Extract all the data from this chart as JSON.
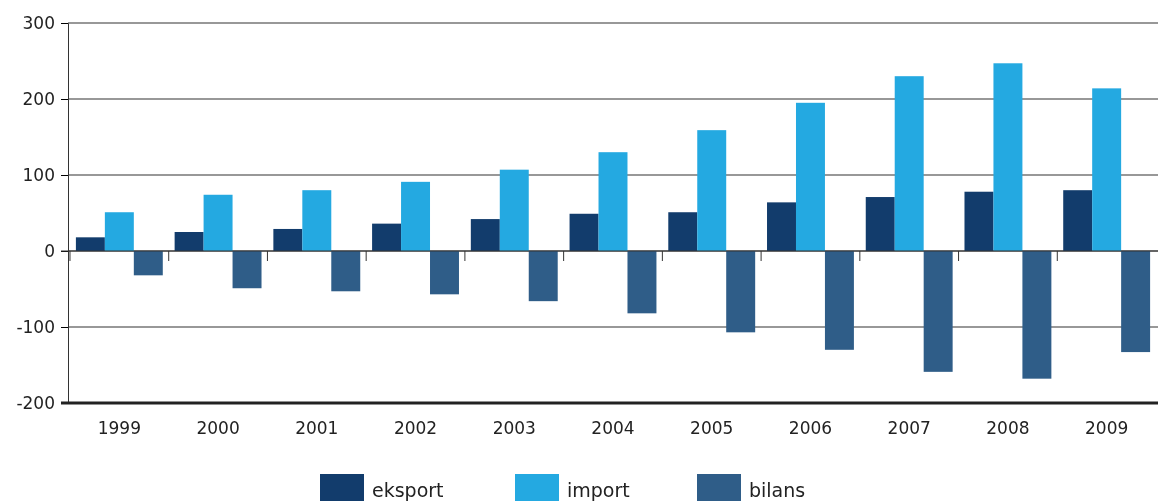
{
  "chart_data": {
    "type": "bar",
    "categories": [
      "1999",
      "2000",
      "2001",
      "2002",
      "2003",
      "2004",
      "2005",
      "2006",
      "2007",
      "2008",
      "2009"
    ],
    "series": [
      {
        "name": "eksport",
        "color": "#123c6c",
        "values": [
          18,
          25,
          29,
          36,
          42,
          49,
          51,
          64,
          71,
          78,
          80
        ]
      },
      {
        "name": "import",
        "color": "#24a9e1",
        "values": [
          51,
          74,
          80,
          91,
          107,
          130,
          159,
          195,
          230,
          247,
          214
        ]
      },
      {
        "name": "bilans",
        "color": "#2f5d88",
        "values": [
          -32,
          -49,
          -53,
          -57,
          -66,
          -82,
          -107,
          -130,
          -159,
          -168,
          -133
        ]
      }
    ],
    "ylim": [
      -200,
      300
    ],
    "yticks": [
      -200,
      -100,
      0,
      100,
      200,
      300
    ],
    "grid": "y",
    "legend": "bottom"
  }
}
